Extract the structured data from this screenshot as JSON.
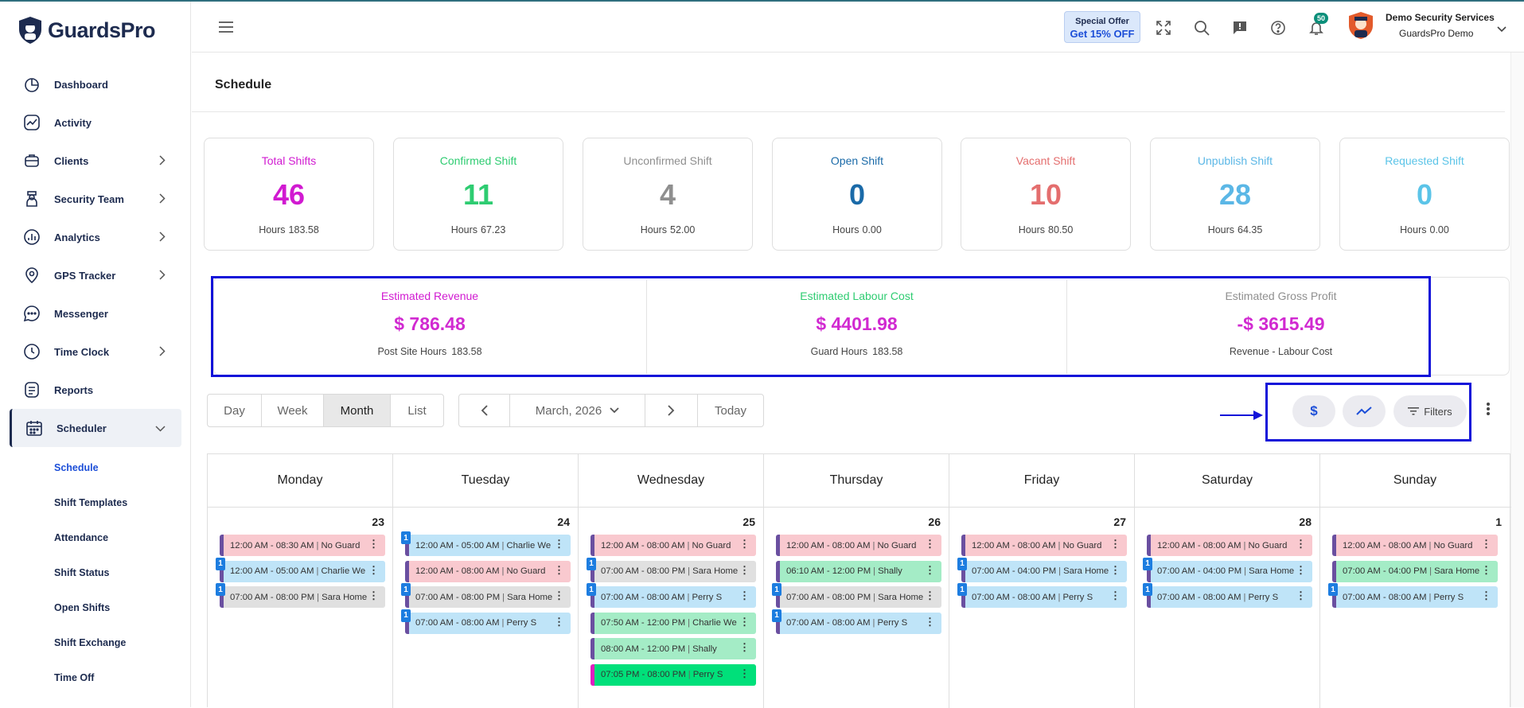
{
  "brand": {
    "name": "GuardsPro"
  },
  "sidebar": {
    "items": [
      {
        "label": "Dashboard",
        "icon": "dashboard-icon",
        "expand": false
      },
      {
        "label": "Activity",
        "icon": "activity-icon",
        "expand": false
      },
      {
        "label": "Clients",
        "icon": "clients-icon",
        "expand": true
      },
      {
        "label": "Security Team",
        "icon": "security-team-icon",
        "expand": true
      },
      {
        "label": "Analytics",
        "icon": "analytics-icon",
        "expand": true
      },
      {
        "label": "GPS Tracker",
        "icon": "gps-icon",
        "expand": true
      },
      {
        "label": "Messenger",
        "icon": "messenger-icon",
        "expand": false
      },
      {
        "label": "Time Clock",
        "icon": "clock-icon",
        "expand": true
      },
      {
        "label": "Reports",
        "icon": "reports-icon",
        "expand": false
      },
      {
        "label": "Scheduler",
        "icon": "scheduler-icon",
        "expand": true
      }
    ],
    "sub_items": [
      "Schedule",
      "Shift Templates",
      "Attendance",
      "Shift Status",
      "Open Shifts",
      "Shift Exchange",
      "Time Off"
    ]
  },
  "header": {
    "offer_line1": "Special Offer",
    "offer_line2": "Get 15% OFF",
    "notification_count": "50",
    "user_company": "Demo Security Services",
    "user_name": "GuardsPro Demo"
  },
  "page": {
    "title": "Schedule"
  },
  "stats": [
    {
      "label": "Total Shifts",
      "value": "46",
      "hours_label": "Hours",
      "hours": "183.58",
      "color": "#d11ad1"
    },
    {
      "label": "Confirmed Shift",
      "value": "11",
      "hours_label": "Hours",
      "hours": "67.23",
      "color": "#2ecc71"
    },
    {
      "label": "Unconfirmed Shift",
      "value": "4",
      "hours_label": "Hours",
      "hours": "52.00",
      "color": "#8f8f8f"
    },
    {
      "label": "Open Shift",
      "value": "0",
      "hours_label": "Hours",
      "hours": "0.00",
      "color": "#1a6aa8"
    },
    {
      "label": "Vacant Shift",
      "value": "10",
      "hours_label": "Hours",
      "hours": "80.50",
      "color": "#e46e6e"
    },
    {
      "label": "Unpublish Shift",
      "value": "28",
      "hours_label": "Hours",
      "hours": "64.35",
      "color": "#5bb7e6"
    },
    {
      "label": "Requested Shift",
      "value": "0",
      "hours_label": "Hours",
      "hours": "0.00",
      "color": "#5bc4e8"
    }
  ],
  "estimates": [
    {
      "label": "Estimated Revenue",
      "value": "$ 786.48",
      "sub_label": "Post Site Hours",
      "sub_value": "183.58",
      "color": "#d11ad1"
    },
    {
      "label": "Estimated Labour Cost",
      "value": "$ 4401.98",
      "sub_label": "Guard Hours",
      "sub_value": "183.58",
      "color": "#2ecc71"
    },
    {
      "label": "Estimated Gross Profit",
      "value": "-$ 3615.49",
      "sub_label": "Revenue - Labour Cost",
      "sub_value": "",
      "color": "#8f8f8f"
    }
  ],
  "toolbar": {
    "views": [
      "Day",
      "Week",
      "Month",
      "List"
    ],
    "active_view": "Month",
    "month_label": "March, 2026",
    "today_label": "Today",
    "filters_label": "Filters"
  },
  "calendar": {
    "days": [
      {
        "name": "Monday",
        "date": "23",
        "events": [
          {
            "time": "12:00 AM - 08:30 AM",
            "who": "No Guard",
            "style": "pink",
            "badge": ""
          },
          {
            "time": "12:00 AM - 05:00 AM",
            "who": "Charlie We",
            "style": "lblue",
            "badge": "1"
          },
          {
            "time": "07:00 AM - 08:00 PM",
            "who": "Sara Home",
            "style": "grey",
            "badge": "1"
          }
        ]
      },
      {
        "name": "Tuesday",
        "date": "24",
        "events": [
          {
            "time": "12:00 AM - 05:00 AM",
            "who": "Charlie We",
            "style": "lblue",
            "badge": "1"
          },
          {
            "time": "12:00 AM - 08:00 AM",
            "who": "No Guard",
            "style": "pink",
            "badge": ""
          },
          {
            "time": "07:00 AM - 08:00 PM",
            "who": "Sara Home",
            "style": "grey",
            "badge": "1"
          },
          {
            "time": "07:00 AM - 08:00 AM",
            "who": "Perry S",
            "style": "lblue",
            "badge": "1"
          }
        ]
      },
      {
        "name": "Wednesday",
        "date": "25",
        "events": [
          {
            "time": "12:00 AM - 08:00 AM",
            "who": "No Guard",
            "style": "pink",
            "badge": ""
          },
          {
            "time": "07:00 AM - 08:00 PM",
            "who": "Sara Home",
            "style": "grey",
            "badge": "1"
          },
          {
            "time": "07:00 AM - 08:00 AM",
            "who": "Perry S",
            "style": "lblue",
            "badge": "1"
          },
          {
            "time": "07:50 AM - 12:00 PM",
            "who": "Charlie We",
            "style": "green",
            "badge": ""
          },
          {
            "time": "08:00 AM - 12:00 PM",
            "who": "Shally",
            "style": "green",
            "badge": ""
          },
          {
            "time": "07:05 PM - 08:00 PM",
            "who": "Perry S",
            "style": "green2",
            "badge": ""
          }
        ]
      },
      {
        "name": "Thursday",
        "date": "26",
        "events": [
          {
            "time": "12:00 AM - 08:00 AM",
            "who": "No Guard",
            "style": "pink",
            "badge": ""
          },
          {
            "time": "06:10 AM - 12:00 PM",
            "who": "Shally",
            "style": "green",
            "badge": ""
          },
          {
            "time": "07:00 AM - 08:00 PM",
            "who": "Sara Home",
            "style": "grey",
            "badge": "1"
          },
          {
            "time": "07:00 AM - 08:00 AM",
            "who": "Perry S",
            "style": "lblue",
            "badge": "1"
          }
        ]
      },
      {
        "name": "Friday",
        "date": "27",
        "events": [
          {
            "time": "12:00 AM - 08:00 AM",
            "who": "No Guard",
            "style": "pink",
            "badge": ""
          },
          {
            "time": "07:00 AM - 04:00 PM",
            "who": "Sara Home",
            "style": "lblue",
            "badge": "1"
          },
          {
            "time": "07:00 AM - 08:00 AM",
            "who": "Perry S",
            "style": "lblue",
            "badge": "1"
          }
        ]
      },
      {
        "name": "Saturday",
        "date": "28",
        "events": [
          {
            "time": "12:00 AM - 08:00 AM",
            "who": "No Guard",
            "style": "pink",
            "badge": ""
          },
          {
            "time": "07:00 AM - 04:00 PM",
            "who": "Sara Home",
            "style": "lblue",
            "badge": "1"
          },
          {
            "time": "07:00 AM - 08:00 AM",
            "who": "Perry S",
            "style": "lblue",
            "badge": "1"
          }
        ]
      },
      {
        "name": "Sunday",
        "date": "1",
        "events": [
          {
            "time": "12:00 AM - 08:00 AM",
            "who": "No Guard",
            "style": "pink",
            "badge": ""
          },
          {
            "time": "07:00 AM - 04:00 PM",
            "who": "Sara Home",
            "style": "green",
            "badge": ""
          },
          {
            "time": "07:00 AM - 08:00 AM",
            "who": "Perry S",
            "style": "lblue",
            "badge": "1"
          }
        ]
      }
    ]
  }
}
